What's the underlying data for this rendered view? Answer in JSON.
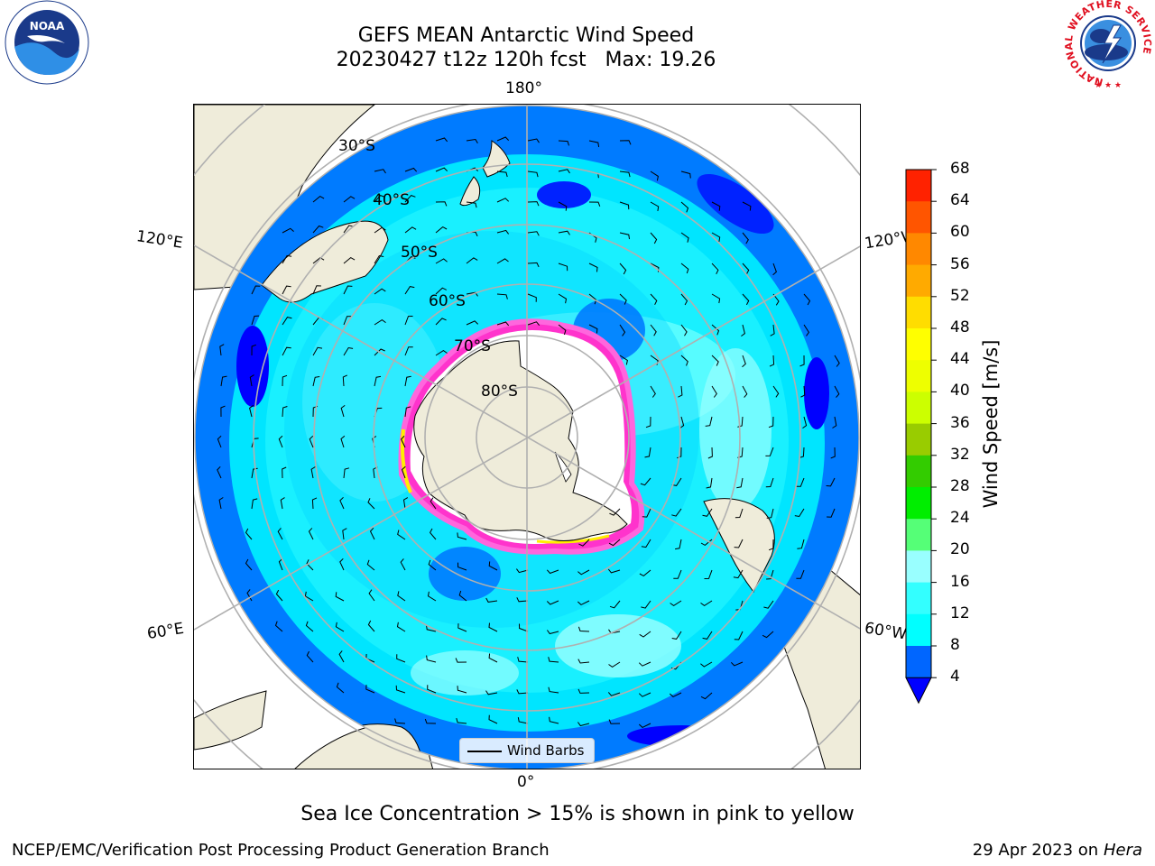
{
  "title": {
    "line1": "GEFS MEAN Antarctic Wind Speed",
    "line2": "20230427 t12z 120h fcst   Max: 19.26"
  },
  "logos": {
    "left": "NOAA",
    "right_ring_text": "NATIONAL WEATHER SERVICE"
  },
  "map": {
    "projection": "south-polar-stereographic",
    "longitude_labels": [
      "180°",
      "120°E",
      "120°W",
      "60°E",
      "60°W",
      "0°"
    ],
    "latitude_labels": [
      "30°S",
      "40°S",
      "50°S",
      "60°S",
      "70°S",
      "80°S"
    ],
    "ocean_color": "#007bff",
    "land_color": "#efecda",
    "gridline_color": "#b0b0b0"
  },
  "colorbar": {
    "label": "Wind Speed [m/s]",
    "ticks": [
      "4",
      "8",
      "12",
      "16",
      "20",
      "24",
      "28",
      "32",
      "36",
      "40",
      "44",
      "48",
      "52",
      "56",
      "60",
      "64",
      "68"
    ],
    "colors": [
      "#0066ff",
      "#00ffff",
      "#33ffff",
      "#99ffff",
      "#55ff77",
      "#00ee00",
      "#33cc00",
      "#99cc00",
      "#ccff00",
      "#eeff00",
      "#ffff00",
      "#ffdd00",
      "#ffaa00",
      "#ff8800",
      "#ff5500",
      "#ff2200"
    ],
    "under_color": "#0000ff"
  },
  "legend": {
    "label": "Wind Barbs"
  },
  "caption": "Sea Ice Concentration > 15% is shown in pink to yellow",
  "footer": {
    "left": "NCEP/EMC/Verification Post Processing Product Generation Branch",
    "date": "29 Apr 2023 on ",
    "machine": "Hera"
  }
}
